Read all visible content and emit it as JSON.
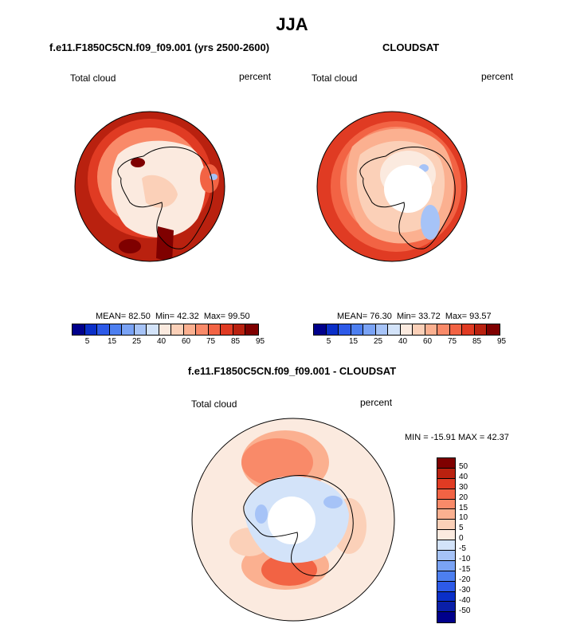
{
  "main_title": "JJA",
  "panel_left": {
    "title": "f.e11.F1850C5CN.f09_f09.001 (yrs 2500-2600)",
    "variable": "Total cloud",
    "units": "percent",
    "stats": {
      "mean": "82.50",
      "min": "42.32",
      "max": "99.50"
    }
  },
  "panel_right": {
    "title": "CLOUDSAT",
    "variable": "Total cloud",
    "units": "percent",
    "stats": {
      "mean": "76.30",
      "min": "33.72",
      "max": "93.57"
    }
  },
  "panel_bottom": {
    "title": "f.e11.F1850C5CN.f09_f09.001 - CLOUDSAT",
    "variable": "Total cloud",
    "units": "percent",
    "stats": {
      "min": "-15.91",
      "max": "42.37"
    }
  },
  "labels": {
    "mean": "MEAN=",
    "min": "Min=",
    "max": "Max=",
    "diff_min": "MIN =",
    "diff_max": "MAX ="
  },
  "colorbar_top": {
    "colors": [
      "#00008b",
      "#0a2fc8",
      "#2d5ae8",
      "#4d7ff0",
      "#7aa3f5",
      "#a6c3f7",
      "#d3e3f9",
      "#fbeadf",
      "#fbd0b8",
      "#fbb090",
      "#f98a69",
      "#f26344",
      "#e03b23",
      "#b9210f",
      "#7f0000"
    ],
    "tick_labels": [
      "5",
      "15",
      "25",
      "40",
      "60",
      "75",
      "85",
      "95"
    ]
  },
  "colorbar_diff": {
    "colors": [
      "#7f0000",
      "#b9210f",
      "#e03b23",
      "#f26344",
      "#f98a69",
      "#fbb090",
      "#fbd0b8",
      "#fbeadf",
      "#d3e3f9",
      "#a6c3f7",
      "#7aa3f5",
      "#4d7ff0",
      "#2d5ae8",
      "#0a2fc8",
      "#0a1fa8",
      "#00008b"
    ],
    "tick_labels": [
      "50",
      "40",
      "30",
      "20",
      "15",
      "10",
      "5",
      "0",
      "-5",
      "-10",
      "-15",
      "-20",
      "-30",
      "-40",
      "-50"
    ]
  },
  "map_colors": {
    "dark_red": "#b9210f",
    "red": "#e03b23",
    "orange_red": "#f26344",
    "salmon": "#f98a69",
    "light_salmon": "#fbb090",
    "peach": "#fbd0b8",
    "cream": "#fbeadf",
    "light_blue": "#d3e3f9",
    "blue": "#a6c3f7",
    "maroon": "#7f0000"
  }
}
